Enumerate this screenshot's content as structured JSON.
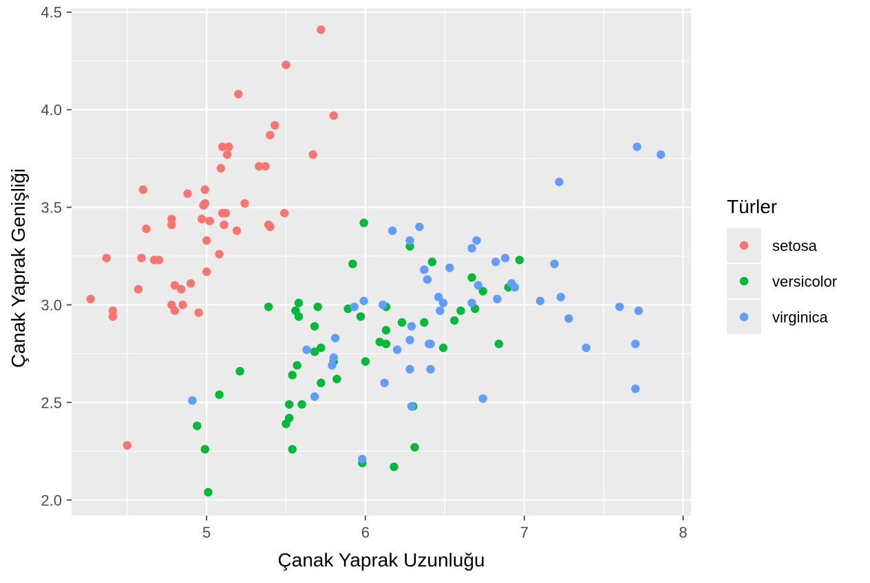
{
  "chart_data": {
    "type": "scatter",
    "xlabel": "Çanak Yaprak Uzunluğu",
    "ylabel": "Çanak Yaprak Genişliği",
    "xlim": [
      4.15,
      8.05
    ],
    "ylim": [
      1.92,
      4.52
    ],
    "x_ticks": [
      5,
      6,
      7,
      8
    ],
    "y_ticks": [
      "2.0",
      "2.5",
      "3.0",
      "3.5",
      "4.0",
      "4.5"
    ],
    "grid": true,
    "legend": {
      "title": "Türler",
      "placement": "right"
    },
    "series": [
      {
        "name": "setosa",
        "color": "#F8766D",
        "points": [
          [
            5.72,
            4.41
          ],
          [
            5.5,
            4.23
          ],
          [
            5.2,
            4.08
          ],
          [
            5.8,
            3.97
          ],
          [
            5.43,
            3.92
          ],
          [
            5.4,
            3.87
          ],
          [
            5.1,
            3.81
          ],
          [
            5.14,
            3.81
          ],
          [
            5.13,
            3.77
          ],
          [
            5.67,
            3.77
          ],
          [
            5.33,
            3.71
          ],
          [
            5.37,
            3.71
          ],
          [
            5.09,
            3.7
          ],
          [
            4.6,
            3.59
          ],
          [
            4.99,
            3.59
          ],
          [
            4.88,
            3.57
          ],
          [
            4.99,
            3.52
          ],
          [
            4.98,
            3.51
          ],
          [
            5.24,
            3.52
          ],
          [
            5.1,
            3.47
          ],
          [
            5.12,
            3.47
          ],
          [
            5.49,
            3.47
          ],
          [
            4.78,
            3.44
          ],
          [
            4.97,
            3.44
          ],
          [
            5.02,
            3.43
          ],
          [
            4.62,
            3.39
          ],
          [
            4.78,
            3.41
          ],
          [
            5.11,
            3.41
          ],
          [
            5.39,
            3.41
          ],
          [
            5.4,
            3.4
          ],
          [
            5.19,
            3.38
          ],
          [
            5.0,
            3.33
          ],
          [
            5.08,
            3.26
          ],
          [
            4.37,
            3.24
          ],
          [
            4.59,
            3.24
          ],
          [
            4.67,
            3.23
          ],
          [
            4.7,
            3.23
          ],
          [
            5.0,
            3.17
          ],
          [
            4.8,
            3.1
          ],
          [
            4.9,
            3.11
          ],
          [
            4.57,
            3.08
          ],
          [
            4.84,
            3.08
          ],
          [
            4.27,
            3.03
          ],
          [
            4.78,
            3.0
          ],
          [
            4.85,
            3.0
          ],
          [
            4.8,
            2.97
          ],
          [
            4.41,
            2.97
          ],
          [
            4.95,
            2.96
          ],
          [
            4.41,
            2.94
          ],
          [
            4.5,
            2.28
          ]
        ]
      },
      {
        "name": "versicolor",
        "color": "#00BA38",
        "points": [
          [
            5.99,
            3.42
          ],
          [
            6.28,
            3.3
          ],
          [
            6.97,
            3.23
          ],
          [
            6.42,
            3.22
          ],
          [
            5.92,
            3.21
          ],
          [
            6.67,
            3.14
          ],
          [
            6.9,
            3.09
          ],
          [
            6.74,
            3.07
          ],
          [
            5.39,
            2.99
          ],
          [
            5.58,
            3.01
          ],
          [
            5.7,
            2.99
          ],
          [
            6.13,
            2.99
          ],
          [
            5.56,
            2.97
          ],
          [
            5.89,
            2.98
          ],
          [
            6.6,
            2.97
          ],
          [
            6.69,
            2.98
          ],
          [
            5.97,
            2.94
          ],
          [
            5.58,
            2.94
          ],
          [
            6.56,
            2.92
          ],
          [
            6.23,
            2.91
          ],
          [
            6.37,
            2.91
          ],
          [
            5.68,
            2.89
          ],
          [
            6.13,
            2.87
          ],
          [
            6.09,
            2.81
          ],
          [
            6.13,
            2.8
          ],
          [
            6.49,
            2.78
          ],
          [
            6.84,
            2.8
          ],
          [
            5.72,
            2.78
          ],
          [
            5.68,
            2.76
          ],
          [
            5.8,
            2.71
          ],
          [
            6.0,
            2.71
          ],
          [
            5.57,
            2.69
          ],
          [
            5.21,
            2.66
          ],
          [
            5.54,
            2.64
          ],
          [
            5.82,
            2.62
          ],
          [
            5.72,
            2.6
          ],
          [
            5.08,
            2.54
          ],
          [
            5.52,
            2.49
          ],
          [
            5.6,
            2.49
          ],
          [
            6.3,
            2.48
          ],
          [
            5.52,
            2.42
          ],
          [
            5.5,
            2.39
          ],
          [
            4.94,
            2.38
          ],
          [
            4.99,
            2.26
          ],
          [
            5.54,
            2.26
          ],
          [
            6.31,
            2.27
          ],
          [
            5.98,
            2.19
          ],
          [
            6.18,
            2.17
          ],
          [
            5.01,
            2.04
          ]
        ]
      },
      {
        "name": "virginica",
        "color": "#619CFF",
        "points": [
          [
            7.71,
            3.81
          ],
          [
            7.86,
            3.77
          ],
          [
            7.22,
            3.63
          ],
          [
            6.34,
            3.4
          ],
          [
            6.17,
            3.38
          ],
          [
            6.28,
            3.33
          ],
          [
            6.7,
            3.33
          ],
          [
            6.67,
            3.29
          ],
          [
            6.88,
            3.24
          ],
          [
            6.82,
            3.22
          ],
          [
            7.19,
            3.21
          ],
          [
            6.37,
            3.18
          ],
          [
            6.53,
            3.19
          ],
          [
            6.39,
            3.13
          ],
          [
            6.92,
            3.11
          ],
          [
            6.71,
            3.1
          ],
          [
            6.94,
            3.09
          ],
          [
            6.46,
            3.04
          ],
          [
            6.83,
            3.03
          ],
          [
            7.23,
            3.04
          ],
          [
            5.99,
            3.02
          ],
          [
            7.1,
            3.02
          ],
          [
            6.49,
            3.01
          ],
          [
            6.67,
            3.01
          ],
          [
            6.11,
            3.0
          ],
          [
            5.93,
            2.99
          ],
          [
            6.29,
            2.89
          ],
          [
            7.6,
            2.99
          ],
          [
            6.47,
            2.97
          ],
          [
            7.72,
            2.97
          ],
          [
            7.28,
            2.93
          ],
          [
            5.81,
            2.83
          ],
          [
            6.28,
            2.82
          ],
          [
            6.4,
            2.8
          ],
          [
            6.41,
            2.8
          ],
          [
            6.2,
            2.77
          ],
          [
            5.63,
            2.77
          ],
          [
            7.39,
            2.78
          ],
          [
            7.7,
            2.8
          ],
          [
            5.8,
            2.73
          ],
          [
            5.79,
            2.69
          ],
          [
            6.28,
            2.67
          ],
          [
            6.41,
            2.67
          ],
          [
            6.12,
            2.6
          ],
          [
            7.7,
            2.57
          ],
          [
            5.68,
            2.53
          ],
          [
            6.74,
            2.52
          ],
          [
            4.91,
            2.51
          ],
          [
            6.29,
            2.48
          ],
          [
            5.98,
            2.21
          ]
        ]
      }
    ]
  }
}
